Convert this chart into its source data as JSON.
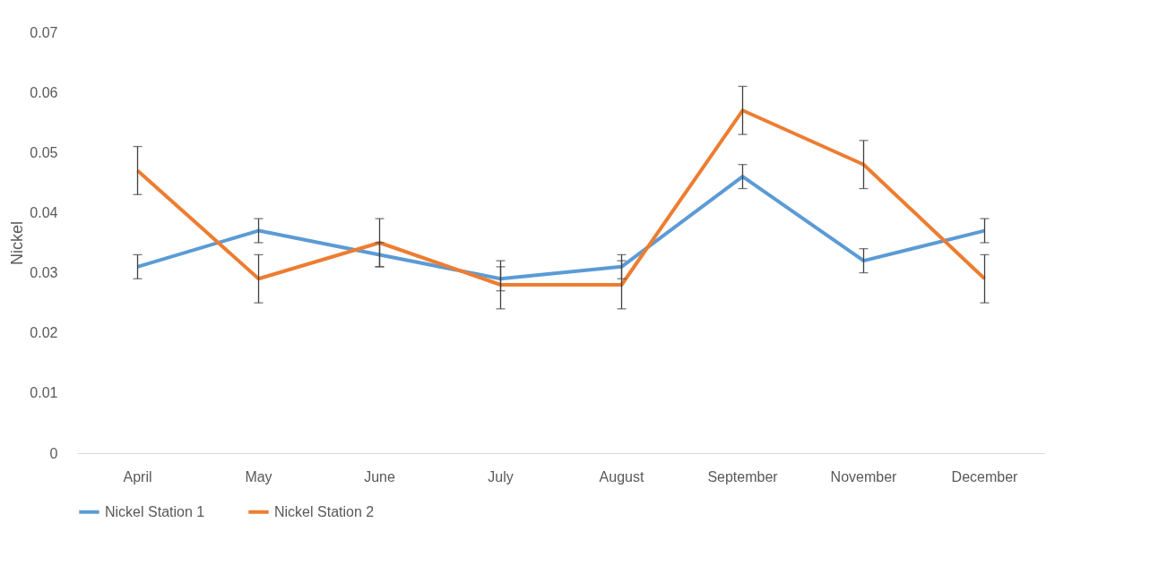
{
  "chart_data": {
    "type": "line",
    "ylabel": "Nickel",
    "categories": [
      "April",
      "May",
      "June",
      "July",
      "August",
      "September",
      "November",
      "December"
    ],
    "series": [
      {
        "name": "Nickel Station 1",
        "color": "#5b9bd5",
        "values": [
          0.031,
          0.037,
          0.033,
          0.029,
          0.031,
          0.046,
          0.032,
          0.037
        ],
        "errors": [
          0.002,
          0.002,
          0.002,
          0.002,
          0.002,
          0.002,
          0.002,
          0.002
        ]
      },
      {
        "name": "Nickel Station 2",
        "color": "#ed7d31",
        "values": [
          0.047,
          0.029,
          0.035,
          0.028,
          0.028,
          0.057,
          0.048,
          0.029
        ],
        "errors": [
          0.004,
          0.004,
          0.004,
          0.004,
          0.004,
          0.004,
          0.004,
          0.004
        ]
      }
    ],
    "ylim": [
      0,
      0.07
    ],
    "yticks": [
      0,
      0.01,
      0.02,
      0.03,
      0.04,
      0.05,
      0.06,
      0.07
    ],
    "grid": false,
    "legend": "bottom",
    "marker": "none",
    "line_style": "solid"
  }
}
